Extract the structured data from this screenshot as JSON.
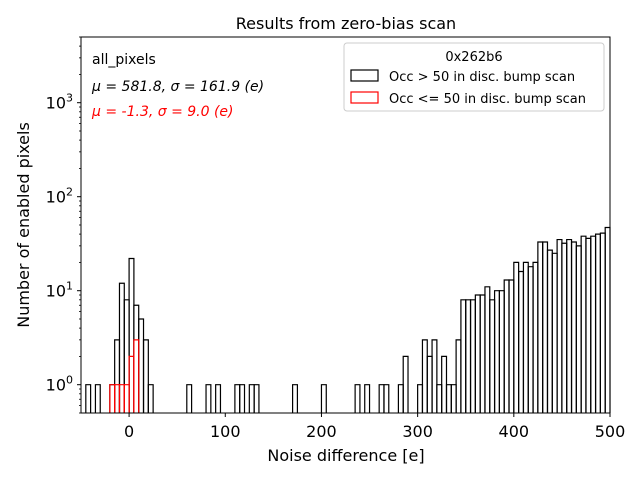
{
  "chart_data": {
    "type": "histogram",
    "title": "Results from zero-bias scan",
    "xlabel": "Noise difference [e]",
    "ylabel": "Number of enabled pixels",
    "xlim": [
      -50,
      500
    ],
    "ylim": [
      0.5,
      5000
    ],
    "yscale": "log",
    "bin_width": 5,
    "x_ticks": [
      0,
      100,
      200,
      300,
      400,
      500
    ],
    "x_tick_labels": [
      "0",
      "100",
      "200",
      "300",
      "400",
      "500"
    ],
    "y_ticks": [
      1,
      10,
      100,
      1000
    ],
    "annotations": {
      "label": "all_pixels",
      "stats_all": "μ = 581.8, σ = 161.9 (e)",
      "stats_red": "μ = -1.3, σ = 9.0 (e)"
    },
    "legend": {
      "title": "0x262b6",
      "location": "top-right",
      "entries": [
        {
          "label": "Occ > 50 in disc. bump scan",
          "color": "#000000"
        },
        {
          "label": "Occ <= 50 in disc. bump scan",
          "color": "#ff0000"
        }
      ]
    },
    "series": [
      {
        "name": "Occ > 50 in disc. bump scan",
        "color": "#000000",
        "bins": [
          [
            -45,
            1
          ],
          [
            -35,
            1
          ],
          [
            -20,
            1
          ],
          [
            -15,
            3
          ],
          [
            -10,
            12
          ],
          [
            -5,
            8
          ],
          [
            0,
            22
          ],
          [
            5,
            7
          ],
          [
            10,
            5
          ],
          [
            15,
            3
          ],
          [
            20,
            1
          ],
          [
            60,
            1
          ],
          [
            80,
            1
          ],
          [
            90,
            1
          ],
          [
            110,
            1
          ],
          [
            115,
            1
          ],
          [
            125,
            1
          ],
          [
            130,
            1
          ],
          [
            170,
            1
          ],
          [
            200,
            1
          ],
          [
            235,
            1
          ],
          [
            245,
            1
          ],
          [
            260,
            1
          ],
          [
            265,
            1
          ],
          [
            280,
            1
          ],
          [
            285,
            2
          ],
          [
            300,
            1
          ],
          [
            305,
            3
          ],
          [
            310,
            2
          ],
          [
            315,
            3
          ],
          [
            320,
            1
          ],
          [
            325,
            2
          ],
          [
            330,
            1
          ],
          [
            335,
            1
          ],
          [
            340,
            3
          ],
          [
            345,
            8
          ],
          [
            350,
            8
          ],
          [
            355,
            8
          ],
          [
            360,
            9
          ],
          [
            365,
            9
          ],
          [
            370,
            11
          ],
          [
            375,
            8
          ],
          [
            380,
            10
          ],
          [
            385,
            10
          ],
          [
            390,
            13
          ],
          [
            395,
            13
          ],
          [
            400,
            20
          ],
          [
            405,
            16
          ],
          [
            410,
            20
          ],
          [
            415,
            18
          ],
          [
            420,
            20
          ],
          [
            425,
            33
          ],
          [
            430,
            33
          ],
          [
            435,
            27
          ],
          [
            440,
            25
          ],
          [
            445,
            35
          ],
          [
            450,
            32
          ],
          [
            455,
            35
          ],
          [
            460,
            33
          ],
          [
            465,
            30
          ],
          [
            470,
            38
          ],
          [
            475,
            36
          ],
          [
            480,
            38
          ],
          [
            485,
            40
          ],
          [
            490,
            41
          ],
          [
            495,
            47
          ]
        ]
      },
      {
        "name": "Occ <= 50 in disc. bump scan",
        "color": "#ff0000",
        "bins": [
          [
            -20,
            1
          ],
          [
            -15,
            1
          ],
          [
            -10,
            1
          ],
          [
            -5,
            1
          ],
          [
            0,
            2
          ],
          [
            5,
            3
          ]
        ]
      }
    ]
  }
}
